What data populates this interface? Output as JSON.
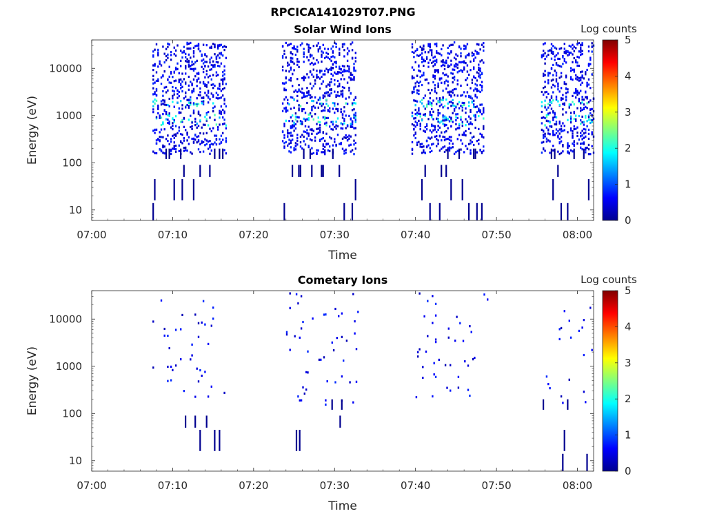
{
  "figure_title": "RPCICA141029T07.PNG",
  "colorbar_scheme": "jet",
  "chart_data": [
    {
      "type": "heatmap",
      "title": "Solar Wind Ions",
      "xlabel": "Time",
      "ylabel": "Energy (eV)",
      "x_ticks": [
        "07:00",
        "07:10",
        "07:20",
        "07:30",
        "07:40",
        "07:50",
        "08:00"
      ],
      "x_range_minutes": [
        0,
        62
      ],
      "y_scale": "log",
      "y_ticks": [
        "10",
        "100",
        "1000",
        "10000"
      ],
      "y_range": [
        6,
        40000
      ],
      "colorbar_label": "Log counts",
      "colorbar_ticks": [
        "0",
        "1",
        "2",
        "3",
        "4",
        "5"
      ],
      "color_range": [
        0,
        5
      ],
      "bursts": [
        {
          "start_minute": 7.5,
          "end_minute": 16.5
        },
        {
          "start_minute": 23.5,
          "end_minute": 32.5
        },
        {
          "start_minute": 39.5,
          "end_minute": 48.5
        },
        {
          "start_minute": 55.5,
          "end_minute": 62
        }
      ]
    },
    {
      "type": "heatmap",
      "title": "Cometary Ions",
      "xlabel": "Time",
      "ylabel": "Energy (eV)",
      "x_ticks": [
        "07:00",
        "07:10",
        "07:20",
        "07:30",
        "07:40",
        "07:50",
        "08:00"
      ],
      "x_range_minutes": [
        0,
        62
      ],
      "y_scale": "log",
      "y_ticks": [
        "10",
        "100",
        "1000",
        "10000"
      ],
      "y_range": [
        6,
        40000
      ],
      "colorbar_label": "Log counts",
      "colorbar_ticks": [
        "0",
        "1",
        "2",
        "3",
        "4",
        "5"
      ],
      "color_range": [
        0,
        5
      ],
      "bursts": [
        {
          "start_minute": 7.5,
          "end_minute": 17
        },
        {
          "start_minute": 24,
          "end_minute": 33
        },
        {
          "start_minute": 40,
          "end_minute": 49
        },
        {
          "start_minute": 55.5,
          "end_minute": 62
        }
      ]
    }
  ]
}
